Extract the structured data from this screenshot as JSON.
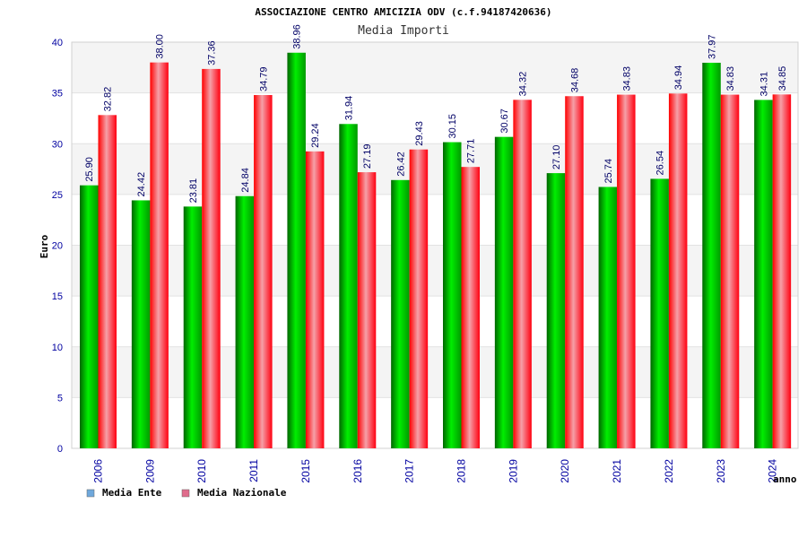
{
  "chart_data": {
    "type": "bar",
    "title": "ASSOCIAZIONE CENTRO AMICIZIA ODV (c.f.94187420636)",
    "subtitle": "Media Importi",
    "ylabel": "Euro",
    "xlabel": "anno",
    "ylim": [
      0,
      40
    ],
    "yticks": [
      "0",
      "5",
      "10",
      "15",
      "20",
      "25",
      "30",
      "35",
      "40"
    ],
    "categories": [
      "2006",
      "2009",
      "2010",
      "2011",
      "2015",
      "2016",
      "2017",
      "2018",
      "2019",
      "2020",
      "2021",
      "2022",
      "2023",
      "2024"
    ],
    "series": [
      {
        "name": "Media Ente",
        "color": "#00cc00",
        "legend_color": "#6fa8dc",
        "values": [
          25.9,
          24.42,
          23.81,
          24.84,
          38.96,
          31.94,
          26.42,
          30.15,
          30.67,
          27.1,
          25.74,
          26.54,
          37.97,
          34.31
        ],
        "labels": [
          "25.90",
          "24.42",
          "23.81",
          "24.84",
          "38.96",
          "31.94",
          "26.42",
          "30.15",
          "30.67",
          "27.10",
          "25.74",
          "26.54",
          "37.97",
          "34.31"
        ]
      },
      {
        "name": "Media Nazionale",
        "color": "#ee1122",
        "legend_color": "#e06c8c",
        "values": [
          32.82,
          38.0,
          37.36,
          34.79,
          29.24,
          27.19,
          29.43,
          27.71,
          34.32,
          34.68,
          34.83,
          34.94,
          34.83,
          34.85
        ],
        "labels": [
          "32.82",
          "38.00",
          "37.36",
          "34.79",
          "29.24",
          "27.19",
          "29.43",
          "27.71",
          "34.32",
          "34.68",
          "34.83",
          "34.94",
          "34.83",
          "34.85"
        ]
      }
    ],
    "grid": true,
    "legend_position": "bottom-left"
  }
}
